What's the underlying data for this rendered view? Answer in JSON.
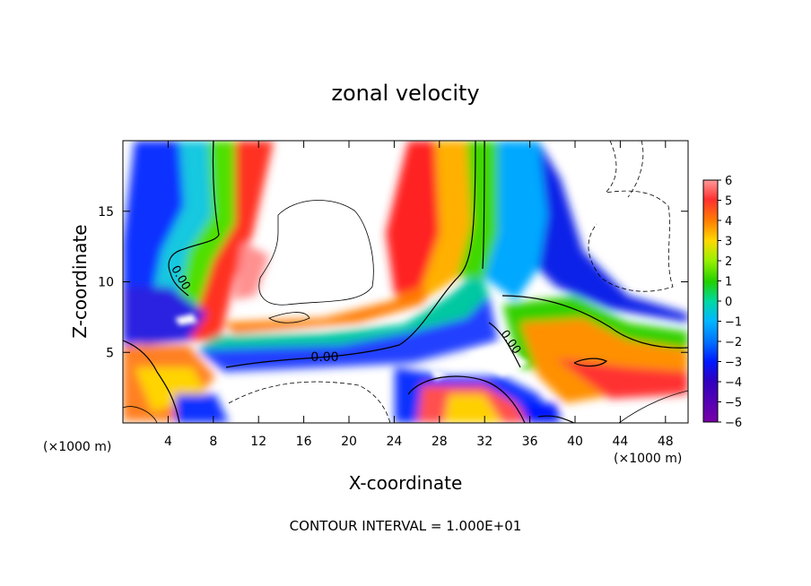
{
  "chart_data": {
    "type": "heatmap",
    "title": "zonal velocity",
    "xlabel": "X-coordinate",
    "ylabel": "Z-coordinate",
    "x_unit_left": "(×1000 m)",
    "x_unit_right": "(×1000 m)",
    "x_ticks": [
      "4",
      "8",
      "12",
      "16",
      "20",
      "24",
      "28",
      "32",
      "36",
      "40",
      "44",
      "48"
    ],
    "x_tick_values": [
      4,
      8,
      12,
      16,
      20,
      24,
      28,
      32,
      36,
      40,
      44,
      48
    ],
    "y_ticks": [
      "5",
      "10",
      "15"
    ],
    "y_tick_values": [
      5,
      10,
      15
    ],
    "xlim": [
      0,
      50
    ],
    "ylim": [
      0,
      20
    ],
    "colorbar": {
      "labels": [
        "6",
        "5",
        "4",
        "3",
        "2",
        "1",
        "0",
        "−1",
        "−2",
        "−3",
        "−4",
        "−5",
        "−6"
      ],
      "min": -6,
      "max": 6,
      "colors": [
        "#ff9a9a",
        "#ff3030",
        "#ff8000",
        "#ffd800",
        "#9cf000",
        "#22d000",
        "#00d8a0",
        "#00b8ff",
        "#0070ff",
        "#0018ff",
        "#3000c0",
        "#7800a8"
      ]
    },
    "contour_label": "0.00",
    "footer": "CONTOUR INTERVAL = 1.000E+01"
  }
}
